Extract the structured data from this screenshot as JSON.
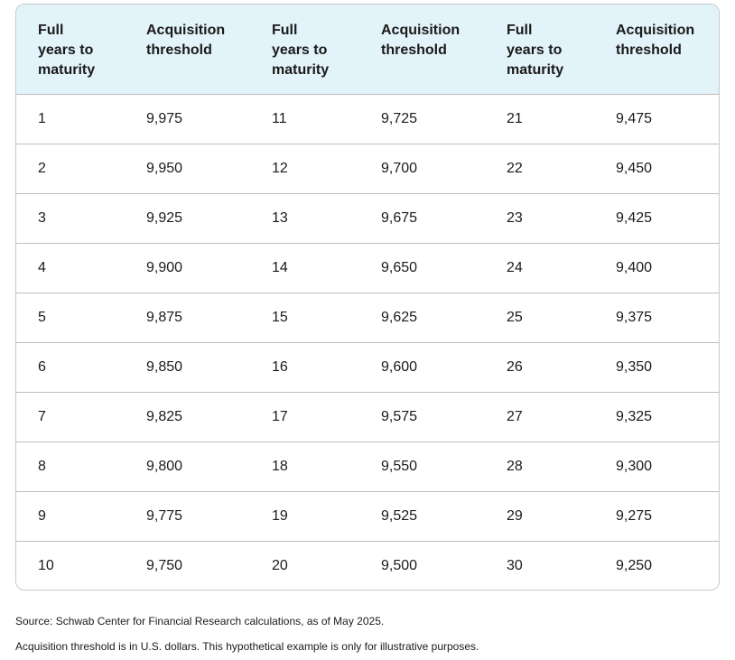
{
  "table": {
    "headers": [
      "Full\nyears to\nmaturity",
      "Acquisition\nthreshold",
      "Full\nyears to\nmaturity",
      "Acquisition\nthreshold",
      "Full\nyears to\nmaturity",
      "Acquisition\nthreshold"
    ],
    "rows": [
      [
        "1",
        "9,975",
        "11",
        "9,725",
        "21",
        "9,475"
      ],
      [
        "2",
        "9,950",
        "12",
        "9,700",
        "22",
        "9,450"
      ],
      [
        "3",
        "9,925",
        "13",
        "9,675",
        "23",
        "9,425"
      ],
      [
        "4",
        "9,900",
        "14",
        "9,650",
        "24",
        "9,400"
      ],
      [
        "5",
        "9,875",
        "15",
        "9,625",
        "25",
        "9,375"
      ],
      [
        "6",
        "9,850",
        "16",
        "9,600",
        "26",
        "9,350"
      ],
      [
        "7",
        "9,825",
        "17",
        "9,575",
        "27",
        "9,325"
      ],
      [
        "8",
        "9,800",
        "18",
        "9,550",
        "28",
        "9,300"
      ],
      [
        "9",
        "9,775",
        "19",
        "9,525",
        "29",
        "9,275"
      ],
      [
        "10",
        "9,750",
        "20",
        "9,500",
        "30",
        "9,250"
      ]
    ]
  },
  "notes": {
    "source": "Source: Schwab Center for Financial Research calculations, as of May 2025.",
    "disclaimer": "Acquisition threshold is in U.S. dollars. This hypothetical example is only for illustrative purposes."
  },
  "colors": {
    "header_background": "#e2f3fa",
    "border": "#bdbdbd"
  }
}
